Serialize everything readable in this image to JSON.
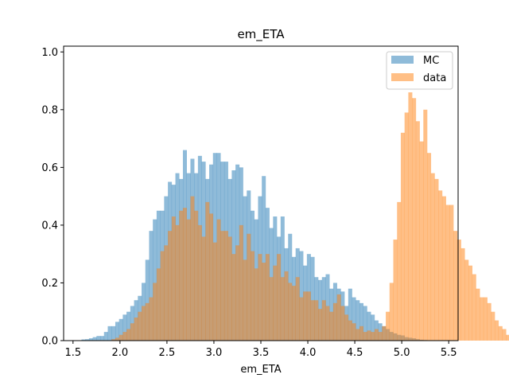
{
  "chart_data": {
    "type": "histogram",
    "title": "em_ETA",
    "xlabel": "em_ETA",
    "ylabel": "",
    "xlim": [
      1.4,
      5.6
    ],
    "ylim": [
      0.0,
      1.02
    ],
    "xticks": [
      "1.5",
      "2.0",
      "2.5",
      "3.0",
      "3.5",
      "4.0",
      "4.5",
      "5.0",
      "5.5"
    ],
    "yticks": [
      "0.0",
      "0.2",
      "0.4",
      "0.6",
      "0.8",
      "1.0"
    ],
    "grid": false,
    "legend_position": "top-right",
    "series": [
      {
        "name": "MC",
        "color": "#1f77b4",
        "alpha": 0.5,
        "bin_start": 1.55,
        "bin_width": 0.04,
        "values": [
          0.0,
          0.004,
          0.005,
          0.008,
          0.012,
          0.016,
          0.016,
          0.03,
          0.05,
          0.05,
          0.065,
          0.075,
          0.09,
          0.1,
          0.12,
          0.14,
          0.155,
          0.2,
          0.28,
          0.38,
          0.42,
          0.45,
          0.45,
          0.5,
          0.55,
          0.54,
          0.58,
          0.56,
          0.66,
          0.58,
          0.63,
          0.58,
          0.64,
          0.62,
          0.56,
          0.61,
          0.65,
          0.65,
          0.62,
          0.62,
          0.56,
          0.59,
          0.61,
          0.6,
          0.5,
          0.52,
          0.45,
          0.42,
          0.5,
          0.57,
          0.46,
          0.39,
          0.43,
          0.36,
          0.43,
          0.32,
          0.37,
          0.29,
          0.32,
          0.31,
          0.26,
          0.3,
          0.29,
          0.22,
          0.21,
          0.22,
          0.23,
          0.18,
          0.2,
          0.18,
          0.17,
          0.12,
          0.18,
          0.15,
          0.14,
          0.13,
          0.12,
          0.1,
          0.09,
          0.07,
          0.06,
          0.05,
          0.04,
          0.03,
          0.025,
          0.02,
          0.018,
          0.012,
          0.01,
          0.008,
          0.005,
          0.003,
          0.002,
          0.0,
          0.0,
          0.0
        ]
      },
      {
        "name": "data",
        "color": "#ff7f0e",
        "alpha": 0.5,
        "bin_start": 1.55,
        "bin_width": 0.04,
        "values": [
          0.0,
          0.0,
          0.0,
          0.0,
          0.0,
          0.0,
          0.0,
          0.0,
          0.0,
          0.005,
          0.01,
          0.02,
          0.03,
          0.04,
          0.06,
          0.08,
          0.1,
          0.12,
          0.13,
          0.15,
          0.2,
          0.25,
          0.31,
          0.33,
          0.38,
          0.43,
          0.4,
          0.45,
          0.46,
          0.42,
          0.5,
          0.45,
          0.4,
          0.36,
          0.48,
          0.44,
          0.34,
          0.42,
          0.38,
          0.38,
          0.36,
          0.3,
          0.33,
          0.4,
          0.28,
          0.37,
          0.31,
          0.25,
          0.3,
          0.27,
          0.3,
          0.22,
          0.26,
          0.3,
          0.22,
          0.24,
          0.2,
          0.19,
          0.22,
          0.15,
          0.17,
          0.17,
          0.14,
          0.14,
          0.11,
          0.14,
          0.12,
          0.1,
          0.13,
          0.16,
          0.12,
          0.09,
          0.07,
          0.06,
          0.04,
          0.05,
          0.03,
          0.035,
          0.03,
          0.04,
          0.03,
          0.05,
          0.1,
          0.2,
          0.35,
          0.48,
          0.72,
          0.79,
          0.86,
          0.84,
          0.76,
          0.69,
          0.8,
          0.65,
          0.58,
          0.56,
          0.52,
          0.5,
          0.47,
          0.47,
          0.38,
          0.35,
          0.32,
          0.28,
          0.26,
          0.23,
          0.18,
          0.15,
          0.15,
          0.13,
          0.1,
          0.07,
          0.05,
          0.04,
          0.02,
          0.01
        ]
      }
    ]
  }
}
